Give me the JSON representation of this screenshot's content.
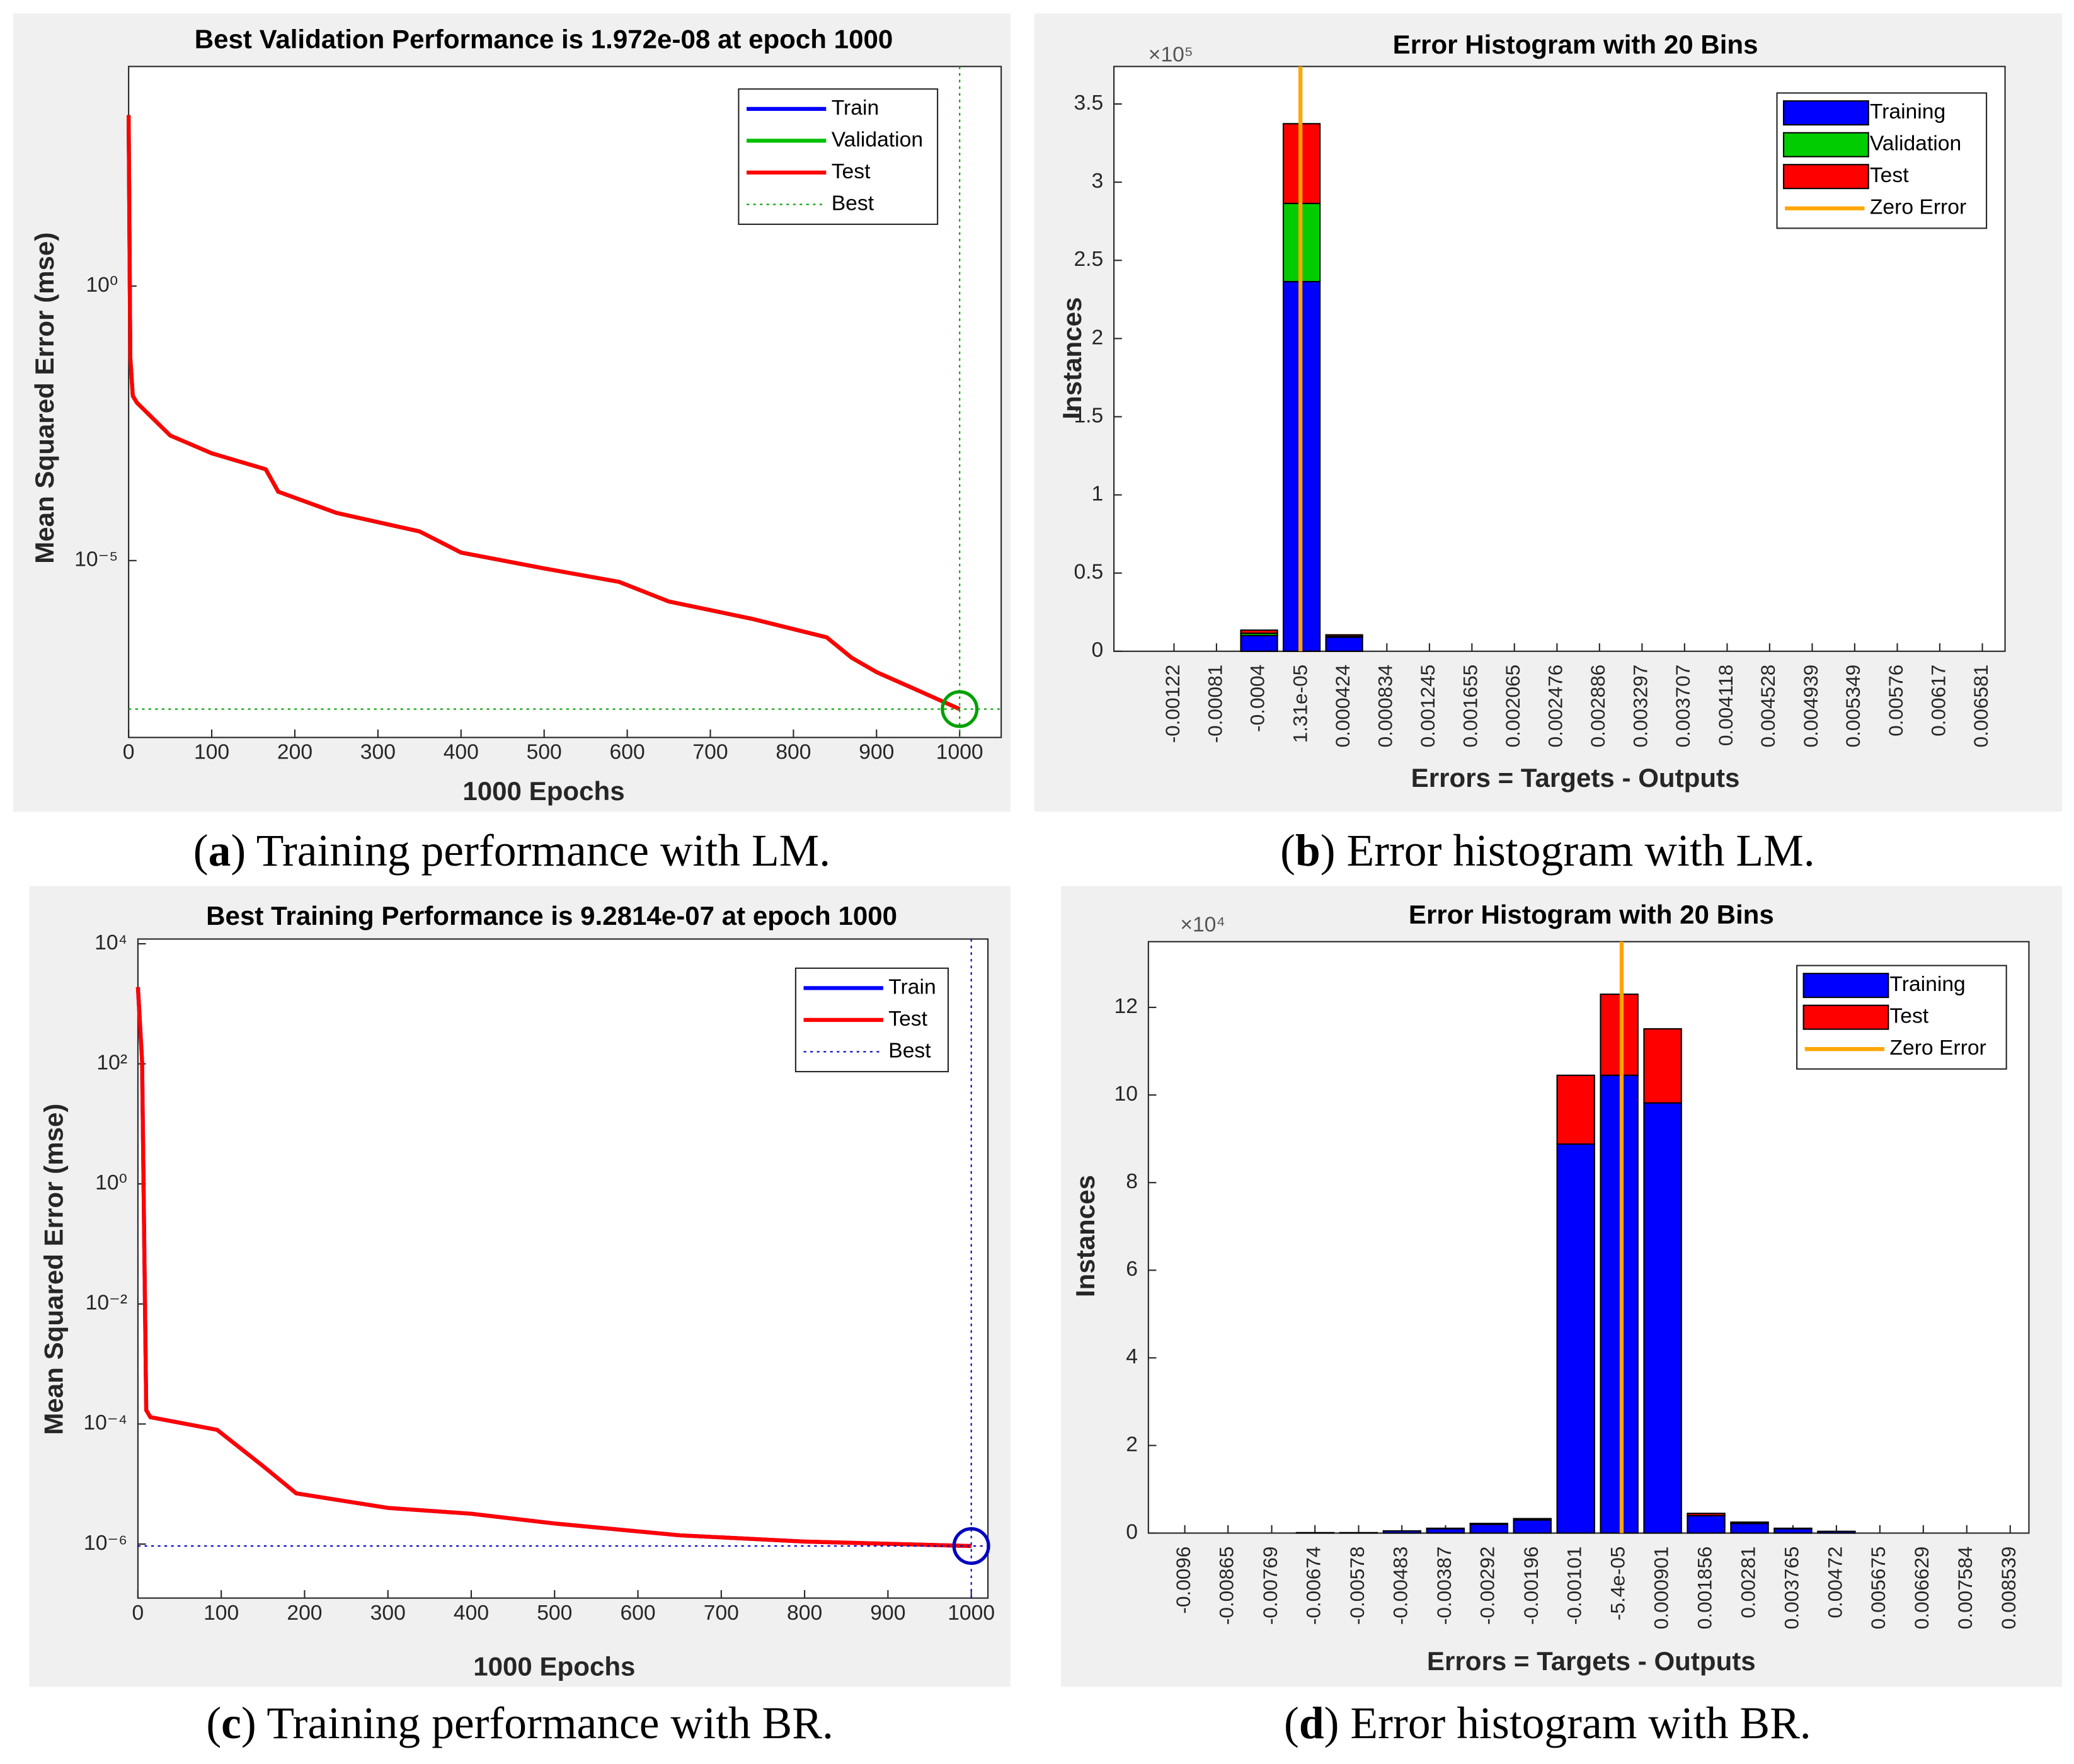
{
  "chart_data": [
    {
      "type": "line",
      "log_y": true,
      "title": "Best Validation Performance is 1.972e-08 at epoch 1000",
      "x_label": "1000 Epochs",
      "y_label": "Mean Squared Error  (mse)",
      "caption_parts": [
        "(",
        "a",
        ") Training performance with LM."
      ],
      "xlim": [
        0,
        1050
      ],
      "xticks": [
        0,
        100,
        200,
        300,
        400,
        500,
        600,
        700,
        800,
        900,
        1000
      ],
      "ylim": [
        6e-09,
        10000
      ],
      "yticks": [
        {
          "value": 1,
          "label": "10⁰"
        },
        {
          "value": 1e-05,
          "label": "10⁻⁵"
        }
      ],
      "x": [
        0,
        2,
        5,
        10,
        50,
        100,
        165,
        180,
        250,
        350,
        400,
        500,
        590,
        650,
        750,
        840,
        870,
        900,
        950,
        1000
      ],
      "series": [
        {
          "name": "Train",
          "color": "#0000ff",
          "values": [
            1300,
            0.05,
            0.01,
            0.0075,
            0.0019,
            0.0009,
            0.00046,
            0.00018,
            7.4e-05,
            3.4e-05,
            1.4e-05,
            7.2e-06,
            4.1e-06,
            1.8e-06,
            8.7e-07,
            4e-07,
            1.7e-07,
            9.3e-08,
            4.3e-08,
            1.972e-08
          ]
        },
        {
          "name": "Validation",
          "color": "#00c000",
          "values": [
            1300,
            0.05,
            0.01,
            0.0075,
            0.0019,
            0.0009,
            0.00046,
            0.00018,
            7.4e-05,
            3.4e-05,
            1.4e-05,
            7.2e-06,
            4.1e-06,
            1.8e-06,
            8.7e-07,
            4e-07,
            1.7e-07,
            9.3e-08,
            4.3e-08,
            1.972e-08
          ]
        },
        {
          "name": "Test",
          "color": "#ff0000",
          "values": [
            1300,
            0.05,
            0.01,
            0.0075,
            0.0019,
            0.0009,
            0.00046,
            0.00018,
            7.4e-05,
            3.4e-05,
            1.4e-05,
            7.2e-06,
            4.1e-06,
            1.8e-06,
            8.7e-07,
            4e-07,
            1.7e-07,
            9.3e-08,
            4.3e-08,
            1.972e-08
          ]
        }
      ],
      "best": {
        "name": "Best",
        "epoch": 1000,
        "value": 1.972e-08,
        "color": "#00a000"
      }
    },
    {
      "type": "histogram",
      "title": "Error Histogram with 20 Bins",
      "x_label": "Errors = Targets - Outputs",
      "y_label": "Instances",
      "y_multiplier": "×10⁵",
      "caption_parts": [
        "(",
        "b",
        ") Error histogram with LM."
      ],
      "bins": [
        -0.00142529,
        -0.00101471,
        -0.00060413,
        -0.00019355,
        0.00021703,
        0.00062761,
        0.00103819,
        0.00144877,
        0.00185935,
        0.00226993,
        0.00268051,
        0.00309109,
        0.00350167,
        0.00391225,
        0.00432283,
        0.00473341,
        0.00514399,
        0.00555457,
        0.00596515,
        0.00637573,
        0.00678631
      ],
      "xlim": [
        -0.0018,
        0.0068
      ],
      "xticks": [
        -0.00122,
        -0.00081,
        -0.0004,
        {
          "value": 1.31e-05,
          "label": "1.31e-05"
        },
        0.000424,
        0.000834,
        0.001245,
        0.001655,
        0.002065,
        0.002476,
        0.002886,
        0.003297,
        0.003707,
        0.004118,
        0.004528,
        0.004939,
        0.005349,
        0.00576,
        0.00617,
        0.006581
      ],
      "ylim": [
        0,
        374000
      ],
      "yticks": [
        0,
        {
          "value": 50000,
          "label": "0.5"
        },
        {
          "value": 100000,
          "label": "1"
        },
        {
          "value": 150000,
          "label": "1.5"
        },
        {
          "value": 200000,
          "label": "2"
        },
        {
          "value": 250000,
          "label": "2.5"
        },
        {
          "value": 300000,
          "label": "3"
        },
        {
          "value": 350000,
          "label": "3.5"
        }
      ],
      "series": [
        {
          "name": "Training",
          "color": "#0000ff",
          "values": [
            0,
            0,
            10000,
            236400,
            9000,
            0,
            0,
            0,
            0,
            0,
            0,
            0,
            0,
            0,
            0,
            0,
            0,
            0,
            0,
            0
          ]
        },
        {
          "name": "Validation",
          "color": "#00cc00",
          "values": [
            0,
            0,
            1500,
            50000,
            500,
            0,
            0,
            0,
            0,
            0,
            0,
            0,
            0,
            0,
            0,
            0,
            0,
            0,
            0,
            0
          ]
        },
        {
          "name": "Test",
          "color": "#ff0000",
          "values": [
            0,
            0,
            2000,
            51000,
            1000,
            0,
            0,
            0,
            0,
            0,
            0,
            0,
            0,
            0,
            0,
            0,
            0,
            0,
            0,
            0
          ]
        }
      ],
      "zero_error": {
        "name": "Zero Error",
        "value": 0,
        "color": "#ffa500"
      }
    },
    {
      "type": "line",
      "log_y": true,
      "title": "Best Training Performance is 9.2814e-07 at epoch 1000",
      "x_label": "1000 Epochs",
      "y_label": "Mean Squared Error  (mse)",
      "caption_parts": [
        "(",
        "c",
        ") Training performance with BR."
      ],
      "xlim": [
        0,
        1020
      ],
      "xticks": [
        0,
        100,
        200,
        300,
        400,
        500,
        600,
        700,
        800,
        900,
        1000
      ],
      "ylim": [
        1.26e-07,
        12000
      ],
      "yticks": [
        {
          "value": 10000,
          "label": "10⁴"
        },
        {
          "value": 100,
          "label": "10²"
        },
        {
          "value": 1,
          "label": "10⁰"
        },
        {
          "value": 0.01,
          "label": "10⁻²"
        },
        {
          "value": 0.0001,
          "label": "10⁻⁴"
        },
        {
          "value": 1e-06,
          "label": "10⁻⁶"
        }
      ],
      "x": [
        0,
        5,
        10,
        15,
        95,
        150,
        190,
        300,
        400,
        500,
        650,
        800,
        1000
      ],
      "series": [
        {
          "name": "Train",
          "color": "#0000ff",
          "values": [
            1900,
            110,
            0.00017,
            0.00013,
            8e-05,
            2e-05,
            7e-06,
            4e-06,
            3.2e-06,
            2.2e-06,
            1.4e-06,
            1.1e-06,
            9.2814e-07
          ]
        },
        {
          "name": "Test",
          "color": "#ff0000",
          "values": [
            1900,
            110,
            0.00017,
            0.00013,
            8e-05,
            2e-05,
            7e-06,
            4e-06,
            3.2e-06,
            2.2e-06,
            1.4e-06,
            1.1e-06,
            9.2814e-07
          ]
        }
      ],
      "best": {
        "name": "Best",
        "epoch": 1000,
        "value": 9.2814e-07,
        "color": "#0000c0"
      }
    },
    {
      "type": "histogram",
      "title": "Error Histogram with 20 Bins",
      "x_label": "Errors = Targets - Outputs",
      "y_label": "Instances",
      "y_multiplier": "×10⁴",
      "caption_parts": [
        "(",
        "d",
        ") Error histogram with BR."
      ],
      "bins": [
        -0.01007734,
        -0.00912266,
        -0.00816798,
        -0.0072133,
        -0.00625862,
        -0.00530394,
        -0.00434926,
        -0.00339458,
        -0.0024399,
        -0.00148522,
        -0.00053054,
        0.00042414,
        0.00137882,
        0.0023335,
        0.00328818,
        0.00424286,
        0.00519754,
        0.00615222,
        0.0071069,
        0.00806158,
        0.00901626
      ],
      "xlim": [
        -0.0104,
        0.00895
      ],
      "xticks": [
        -0.0096,
        -0.00865,
        -0.00769,
        -0.00674,
        -0.00578,
        -0.00483,
        -0.00387,
        -0.00292,
        -0.00196,
        -0.00101,
        {
          "value": -5.4e-05,
          "label": "-5.4e-05"
        },
        0.000901,
        0.001856,
        0.00281,
        0.003765,
        0.00472,
        0.005675,
        0.006629,
        0.007584,
        0.008539
      ],
      "ylim": [
        0,
        135000
      ],
      "yticks": [
        0,
        {
          "value": 20000,
          "label": "2"
        },
        {
          "value": 40000,
          "label": "4"
        },
        {
          "value": 60000,
          "label": "6"
        },
        {
          "value": 80000,
          "label": "8"
        },
        {
          "value": 100000,
          "label": "10"
        },
        {
          "value": 120000,
          "label": "12"
        }
      ],
      "series": [
        {
          "name": "Training",
          "color": "#0000ff",
          "values": [
            0,
            0,
            0,
            100,
            100,
            500,
            1000,
            2000,
            3000,
            88800,
            104500,
            98200,
            4000,
            2200,
            1000,
            400,
            0,
            0,
            0,
            0
          ]
        },
        {
          "name": "Test",
          "color": "#ff0000",
          "values": [
            0,
            0,
            0,
            0,
            0,
            0,
            100,
            200,
            300,
            15700,
            18500,
            16900,
            500,
            300,
            100,
            0,
            0,
            0,
            0,
            0
          ]
        }
      ],
      "zero_error": {
        "name": "Zero Error",
        "value": 0,
        "color": "#ffa500"
      }
    }
  ]
}
